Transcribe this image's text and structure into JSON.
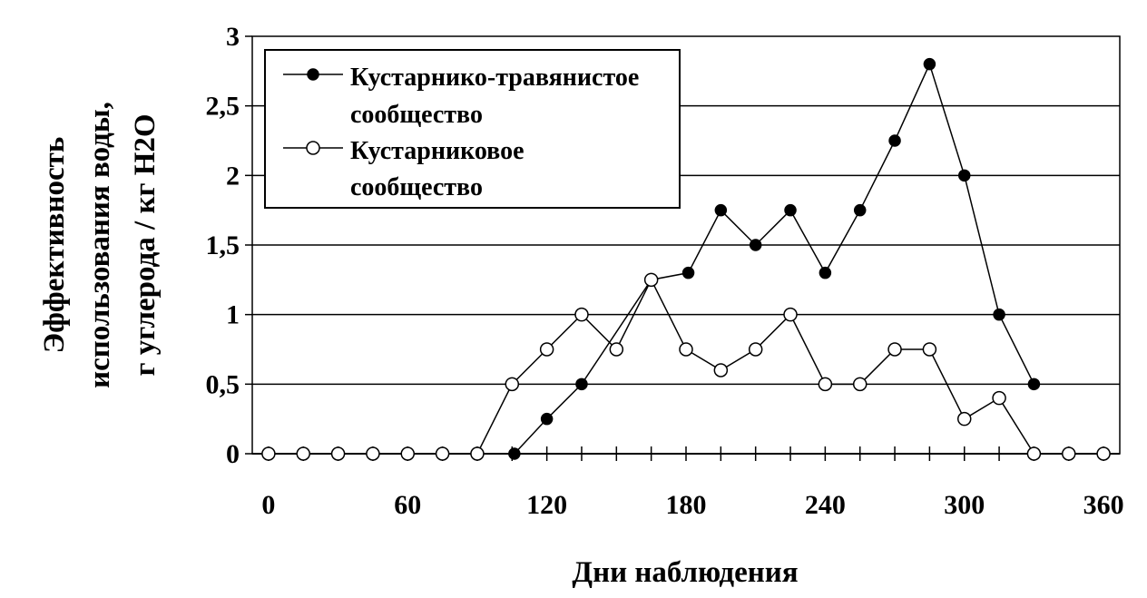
{
  "chart_data": {
    "type": "line",
    "title": "",
    "xlabel": "Дни наблюдения",
    "ylabel_lines": [
      "Эффективность",
      "использования воды,",
      "г углерода / кг H2O"
    ],
    "xlim": [
      -7,
      367
    ],
    "ylim": [
      0,
      3
    ],
    "x_ticks": [
      0,
      60,
      120,
      180,
      240,
      300,
      360
    ],
    "x_tick_labels": [
      "0",
      "60",
      "120",
      "180",
      "240",
      "300",
      "360"
    ],
    "y_ticks": [
      0,
      0.5,
      1,
      1.5,
      2,
      2.5,
      3
    ],
    "y_tick_labels": [
      "0",
      "0,5",
      "1",
      "1,5",
      "2",
      "2,5",
      "3"
    ],
    "grid": "horizontal",
    "legend_position": "top-left",
    "series": [
      {
        "name_lines": [
          "Кустарнико-травянистое",
          "сообщество"
        ],
        "marker": "filled-circle",
        "x": [
          106,
          120,
          135,
          165,
          181,
          195,
          210,
          225,
          240,
          255,
          270,
          285,
          300,
          315,
          330
        ],
        "y": [
          0,
          0.25,
          0.5,
          1.25,
          1.3,
          1.75,
          1.5,
          1.75,
          1.3,
          1.75,
          2.25,
          2.8,
          2.0,
          1.0,
          0.5
        ]
      },
      {
        "name_lines": [
          "Кустарниковое",
          "сообщество"
        ],
        "marker": "open-circle",
        "x": [
          0,
          15,
          30,
          45,
          60,
          75,
          90,
          105,
          120,
          135,
          150,
          165,
          180,
          195,
          210,
          225,
          240,
          255,
          270,
          285,
          300,
          315,
          330,
          345,
          360
        ],
        "y": [
          0,
          0,
          0,
          0,
          0,
          0,
          0,
          0.5,
          0.75,
          1.0,
          0.75,
          1.25,
          0.75,
          0.6,
          0.75,
          1.0,
          0.5,
          0.5,
          0.75,
          0.75,
          0.25,
          0.4,
          0,
          0,
          0
        ]
      }
    ]
  }
}
